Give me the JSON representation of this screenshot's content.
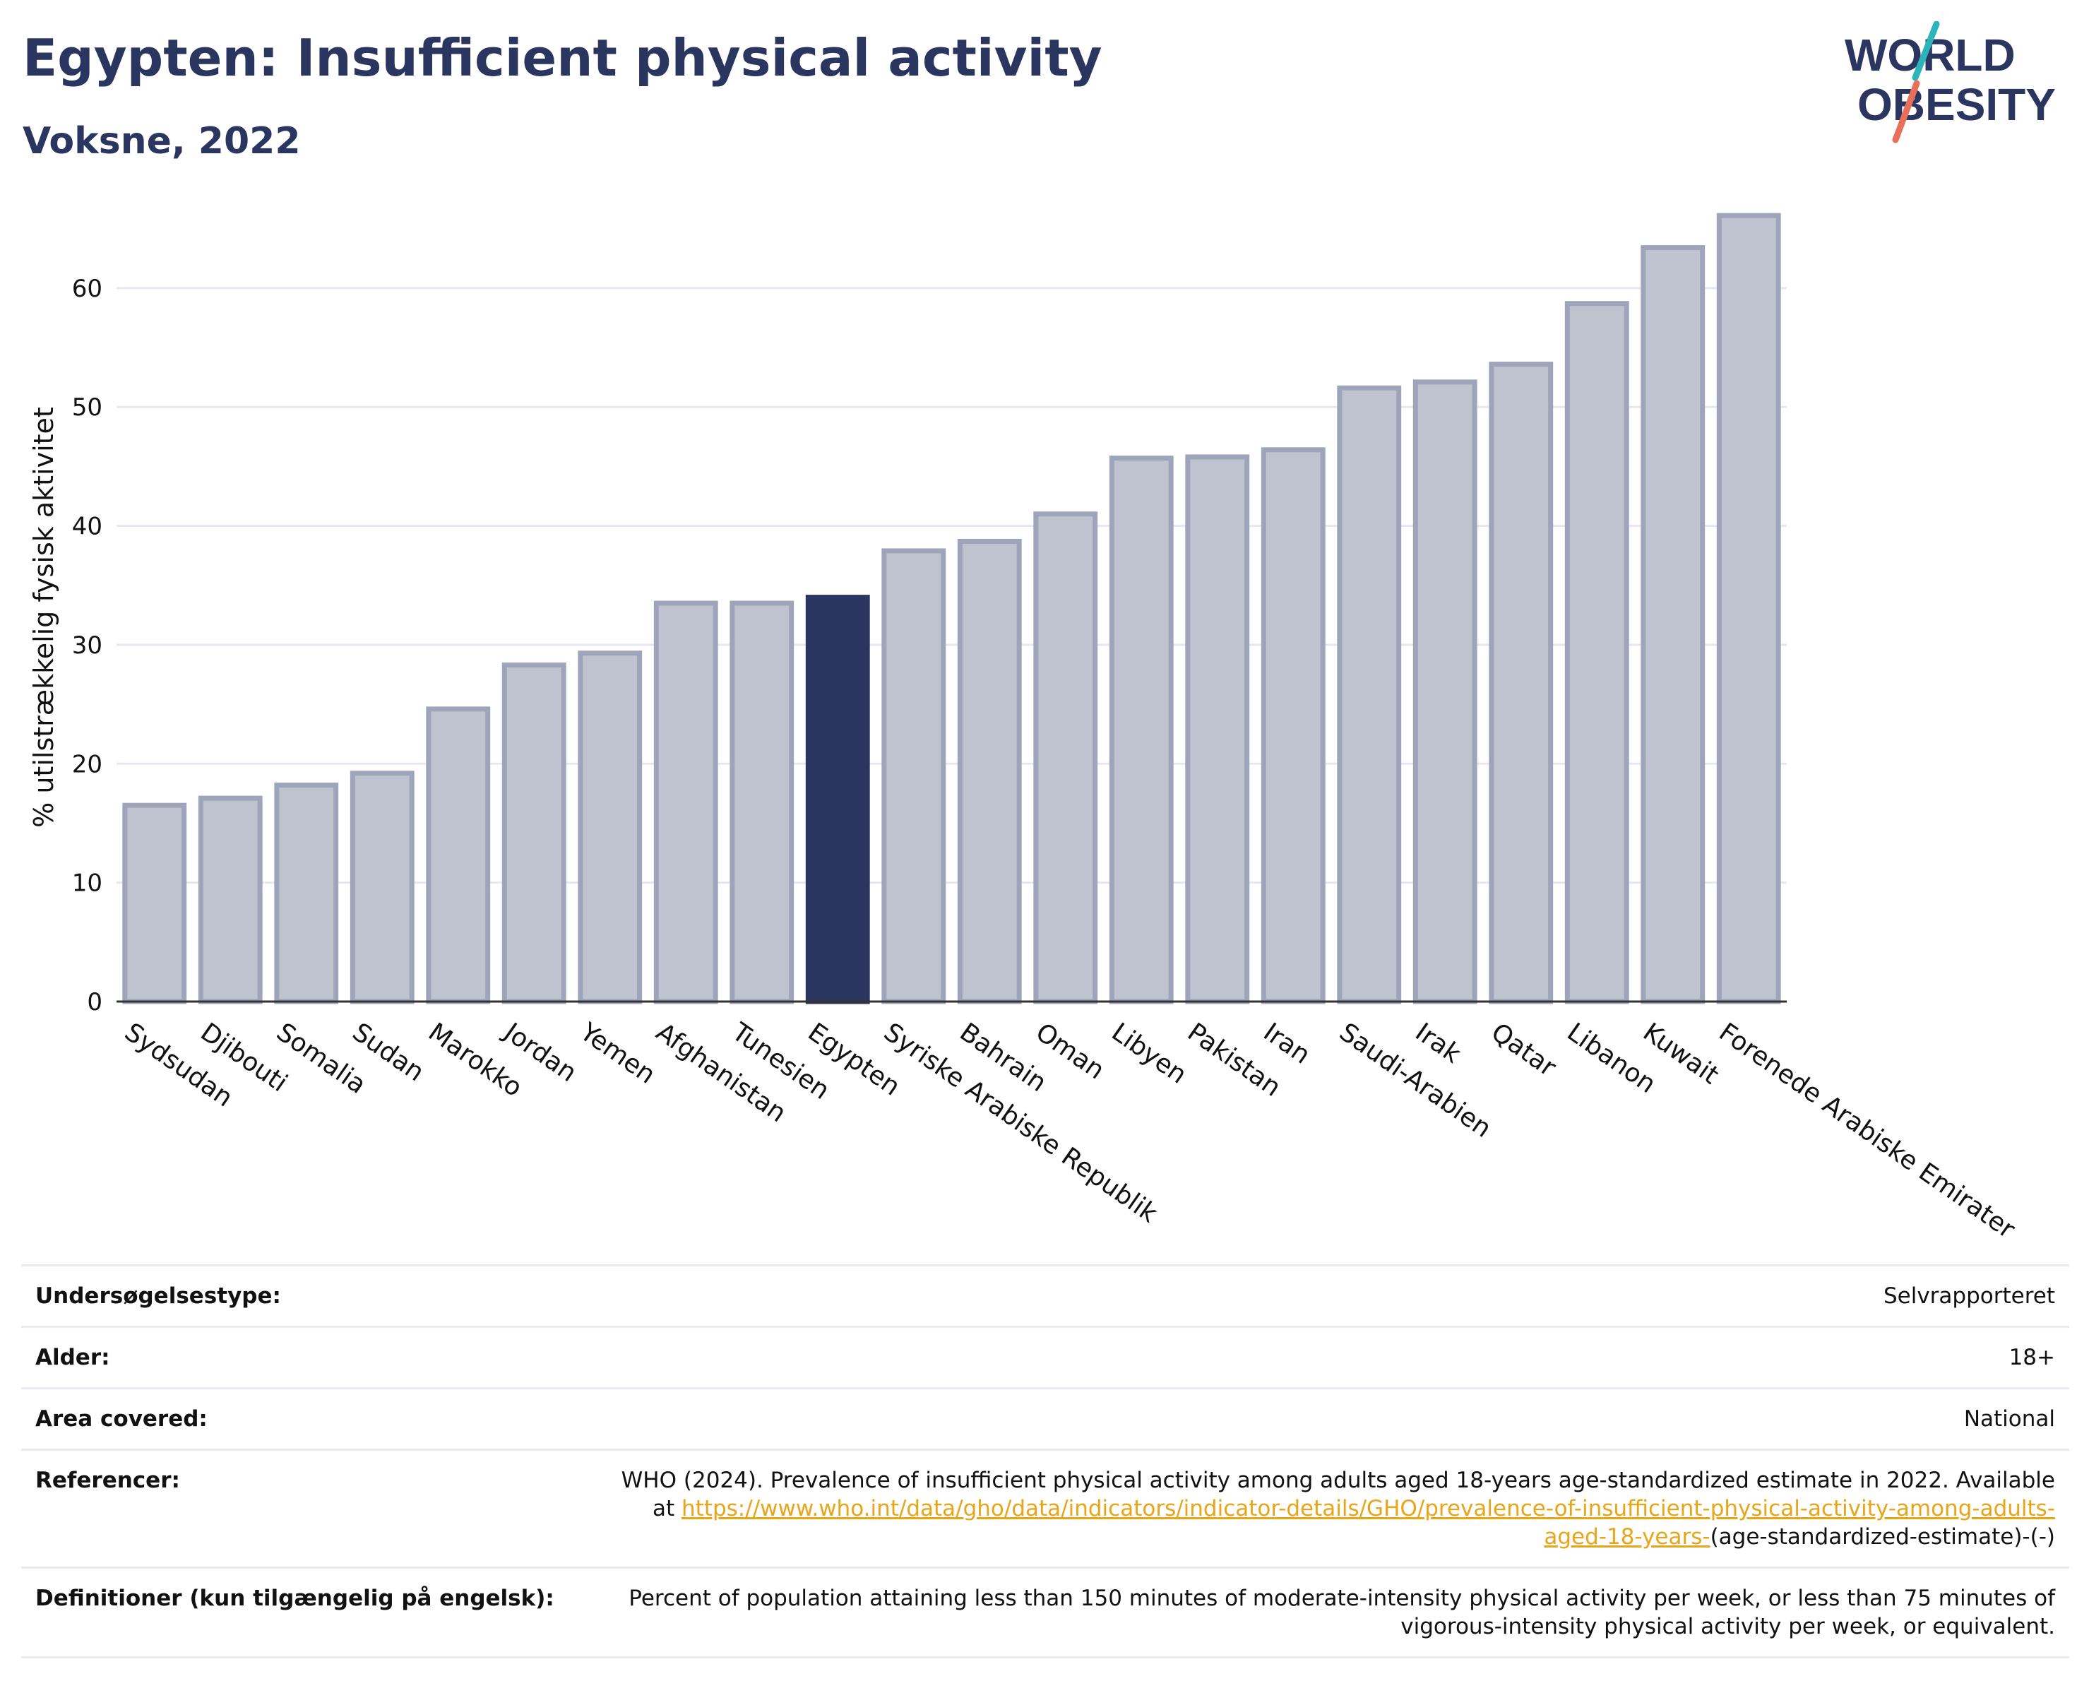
{
  "header": {
    "title": "Egypten: Insufficient physical activity",
    "subtitle": "Voksne, 2022"
  },
  "logo": {
    "line1": "WORLD",
    "line2": "OBESITY",
    "accent_colors": [
      "#2bb5b8",
      "#e8705a"
    ]
  },
  "colors": {
    "highlight": "#2a3560",
    "bar_fill": "#bfc3d0",
    "bar_stroke": "#9ea4ba",
    "link": "#e8a517"
  },
  "chart_data": {
    "type": "bar",
    "title": "",
    "xlabel": "",
    "ylabel": "% utilstrækkelig fysisk aktivitet",
    "ylim": [
      0,
      67
    ],
    "yticks": [
      0,
      10,
      20,
      30,
      40,
      50,
      60
    ],
    "grid": true,
    "highlight": "Egypten",
    "categories": [
      "Sydsudan",
      "Djibouti",
      "Somalia",
      "Sudan",
      "Marokko",
      "Jordan",
      "Yemen",
      "Afghanistan",
      "Tunesien",
      "Egypten",
      "Syriske Arabiske Republik",
      "Bahrain",
      "Oman",
      "Libyen",
      "Pakistan",
      "Iran",
      "Saudi-Arabien",
      "Irak",
      "Qatar",
      "Libanon",
      "Kuwait",
      "Forenede Arabiske Emirater"
    ],
    "values": [
      16.5,
      17.1,
      18.2,
      19.2,
      24.6,
      28.3,
      29.3,
      33.5,
      33.5,
      34.0,
      37.9,
      38.7,
      41.0,
      45.7,
      45.8,
      46.4,
      51.6,
      52.1,
      53.6,
      58.7,
      63.4,
      66.1
    ]
  },
  "info": {
    "survey_type_label": "Undersøgelsestype:",
    "survey_type_value": "Selvrapporteret",
    "age_label": "Alder:",
    "age_value": "18+",
    "area_label": "Area covered:",
    "area_value": "National",
    "ref_label": "Referencer:",
    "ref_text": "WHO (2024). Prevalence of insufficient physical activity among adults aged 18-years age-standardized estimate in 2022. Available at",
    "ref_link": "https://www.who.int/data/gho/data/indicators/indicator-details/GHO/prevalence-of-insufficient-physical-activity-among-adults-aged-18-years-",
    "ref_suffix": "(age-standardized-estimate)-(-)",
    "def_label": "Definitioner (kun tilgængelig på engelsk):",
    "def_value": "Percent of population attaining less than 150 minutes of moderate-intensity physical activity per week, or less than 75 minutes of vigorous-intensity physical activity per week, or equivalent."
  }
}
